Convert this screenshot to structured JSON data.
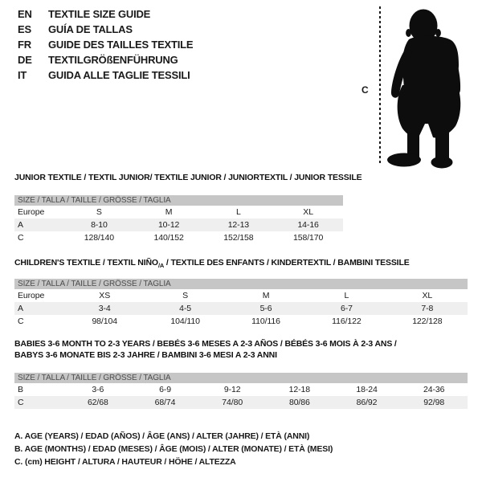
{
  "languages": [
    {
      "code": "EN",
      "title": "TEXTILE SIZE GUIDE"
    },
    {
      "code": "ES",
      "title": "GUÍA DE TALLAS"
    },
    {
      "code": "FR",
      "title": "GUIDE DES TAILLES TEXTILE"
    },
    {
      "code": "DE",
      "title": "TEXTILGRÖßENFÜHRUNG"
    },
    {
      "code": "IT",
      "title": "GUIDA ALLE TAGLIE TESSILI"
    }
  ],
  "figure": {
    "label": "C",
    "image": "baby-silhouette"
  },
  "tables": [
    {
      "id": "junior",
      "title_lines": [
        "JUNIOR TEXTILE / TEXTIL JUNIOR/ TEXTILE JUNIOR / JUNIORTEXTIL / JUNIOR TESSILE"
      ],
      "header": "SIZE / TALLA / TAILLE / GRÖSSE / TAGLIA",
      "rows": [
        {
          "label": "Europe",
          "values": [
            "S",
            "M",
            "L",
            "XL"
          ],
          "shaded": false
        },
        {
          "label": "A",
          "values": [
            "8-10",
            "10-12",
            "12-13",
            "14-16"
          ],
          "shaded": true
        },
        {
          "label": "C",
          "values": [
            "128/140",
            "140/152",
            "152/158",
            "158/170"
          ],
          "shaded": false
        }
      ]
    },
    {
      "id": "children",
      "title_lines": [
        {
          "pre": "CHILDREN'S TEXTILE / TEXTIL NIÑO",
          "sub": "/A",
          "post": " / TEXTILE DES ENFANTS / KINDERTEXTIL / BAMBINI TESSILE"
        }
      ],
      "header": "SIZE / TALLA / TAILLE / GRÖSSE / TAGLIA",
      "rows": [
        {
          "label": "Europe",
          "values": [
            "XS",
            "S",
            "M",
            "L",
            "XL"
          ],
          "shaded": false
        },
        {
          "label": "A",
          "values": [
            "3-4",
            "4-5",
            "5-6",
            "6-7",
            "7-8"
          ],
          "shaded": true
        },
        {
          "label": "C",
          "values": [
            "98/104",
            "104/110",
            "110/116",
            "116/122",
            "122/128"
          ],
          "shaded": false
        }
      ]
    },
    {
      "id": "babies",
      "title_lines": [
        "BABIES 3-6 MONTH TO 2-3 YEARS / BEBÉS 3-6 MESES A 2-3 AÑOS / BÉBÉS 3-6 MOIS À 2-3 ANS /",
        "BABYS 3-6 MONATE BIS 2-3 JAHRE / BAMBINI 3-6 MESI A 2-3 ANNI"
      ],
      "header": "SIZE / TALLA / TAILLE / GRÖSSE / TAGLIA",
      "rows": [
        {
          "label": "B",
          "values": [
            "3-6",
            "6-9",
            "9-12",
            "12-18",
            "18-24",
            "24-36"
          ],
          "shaded": false
        },
        {
          "label": "C",
          "values": [
            "62/68",
            "68/74",
            "74/80",
            "80/86",
            "86/92",
            "92/98"
          ],
          "shaded": true
        }
      ]
    }
  ],
  "footnotes": [
    "A. AGE (YEARS) / EDAD (AÑOS) / ÂGE (ANS) / ALTER (JAHRE) / ETÀ (ANNI)",
    "B. AGE (MONTHS) / EDAD (MESES) / ÂGE (MOIS) / ALTER (MONATE) / ETÀ (MESI)",
    "C. (cm) HEIGHT / ALTURA / HAUTEUR / HÖHE / ALTEZZA"
  ],
  "colors": {
    "text": "#1a1a1a",
    "header_bar": "#c6c6c6",
    "header_text": "#4d4d4d",
    "row_shaded": "#efefef"
  }
}
